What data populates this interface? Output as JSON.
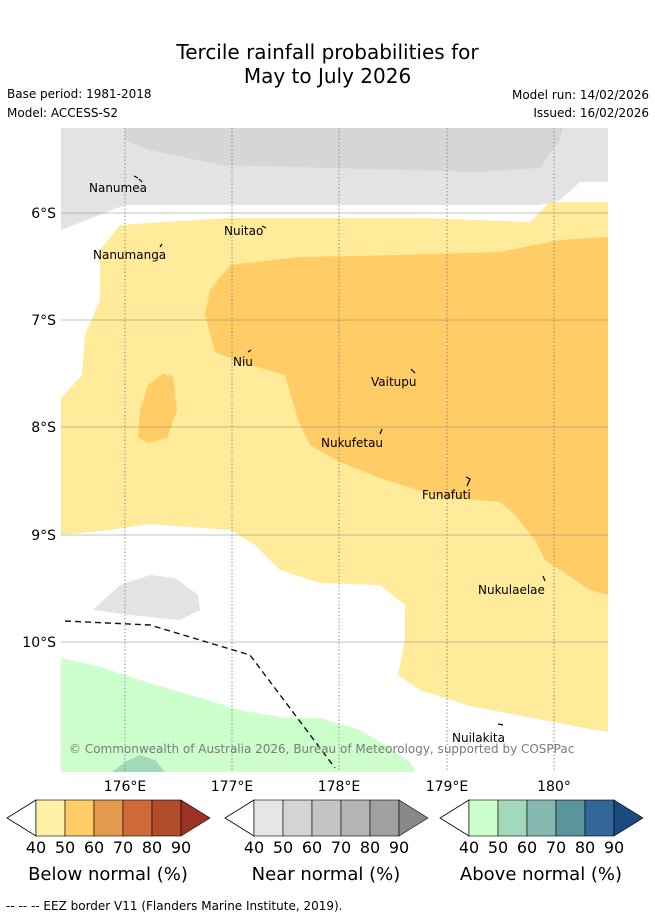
{
  "title_line1": "Tercile rainfall probabilities for",
  "title_line2": "May to July 2026",
  "base_period": "Base period: 1981-2018",
  "model": "Model: ACCESS-S2",
  "model_run": "Model run: 14/02/2026",
  "issued": "Issued: 16/02/2026",
  "lon_ticks": [
    "176°E",
    "177°E",
    "178°E",
    "179°E",
    "180°"
  ],
  "lat_ticks": [
    "6°S",
    "7°S",
    "8°S",
    "9°S",
    "10°S"
  ],
  "places": [
    "Nanumea",
    "Nuitao",
    "Nanumanga",
    "Niu",
    "Vaitupu",
    "Nukufetau",
    "Funafuti",
    "Nukulaelae",
    "Nuilakita"
  ],
  "copyright": "© Commonwealth of Australia 2026, Bureau of Meteorology, supported by COSPPac",
  "colorbars": [
    {
      "label": "Below normal (%)",
      "ticks": [
        "40",
        "50",
        "60",
        "70",
        "80",
        "90"
      ],
      "colors": [
        "#fff0a8",
        "#ffcc66",
        "#e39a4c",
        "#d0693a",
        "#b24d2c",
        "#9b3324"
      ]
    },
    {
      "label": "Near normal (%)",
      "ticks": [
        "40",
        "50",
        "60",
        "70",
        "80",
        "90"
      ],
      "colors": [
        "#e6e6e6",
        "#d4d4d4",
        "#c4c4c4",
        "#b4b4b4",
        "#a0a0a0",
        "#888888"
      ]
    },
    {
      "label": "Above normal (%)",
      "ticks": [
        "40",
        "50",
        "60",
        "70",
        "80",
        "90"
      ],
      "colors": [
        "#ccffcc",
        "#a3d9bb",
        "#85b8b0",
        "#5a949c",
        "#336699",
        "#1a4a80"
      ]
    }
  ],
  "map_colors": {
    "below_40": "#ffeb99",
    "below_50": "#ffcc66",
    "near_40": "#e3e3e3",
    "near_50": "#d6d6d6",
    "above_40": "#ccffcc",
    "above_50": "#a3d9bb"
  },
  "footnote": "-- -- -- EEZ border V11 (Flanders Marine Institute, 2019)."
}
